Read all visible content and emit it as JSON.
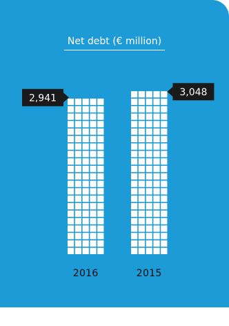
{
  "colors": {
    "background": "#1d9bd7",
    "cells": "#ffffff",
    "label_box": "#1a1a1a",
    "label_text": "#ffffff",
    "year_text": "#0b0b0b"
  },
  "chart_data": {
    "type": "bar",
    "title": "Net debt (€ million)",
    "categories": [
      "2016",
      "2015"
    ],
    "values": [
      2941,
      3048
    ],
    "value_labels": [
      "2,941",
      "3,048"
    ],
    "xlabel": "",
    "ylabel": "",
    "grid": false,
    "legend": "none"
  }
}
